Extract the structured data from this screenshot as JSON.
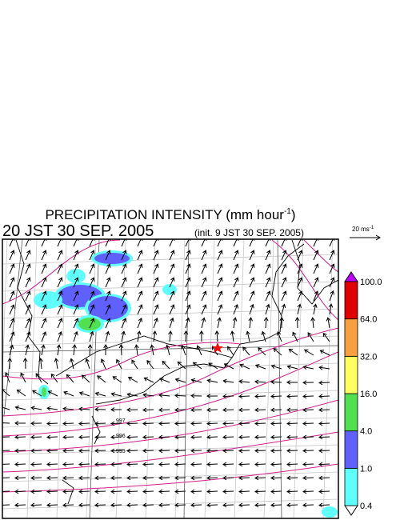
{
  "header": {
    "title": {
      "text": "PRECIPITATION INTENSITY (mm hour",
      "sup": "-1",
      "end": ")"
    },
    "valid_time": "20 JST 30 SEP. 2005",
    "init_time": "(init. 9 JST 30 SEP. 2005)"
  },
  "scale_arrow": {
    "text": "20 ms",
    "sup": "-1"
  },
  "colorbar": {
    "colors": [
      "#60ffff",
      "#6060ff",
      "#50e050",
      "#ffff60",
      "#f8a040",
      "#e00000"
    ],
    "over_color": "#c000ff",
    "under_color": "#ffffff",
    "levels": [
      {
        "value": 0.4,
        "label": "0.4"
      },
      {
        "value": 1,
        "label": "1.0"
      },
      {
        "value": 4,
        "label": "4.0"
      },
      {
        "value": 16,
        "label": "16.0"
      },
      {
        "value": 32,
        "label": "32.0"
      },
      {
        "value": 64,
        "label": "64.0"
      },
      {
        "value": 100,
        "label": "100.0"
      }
    ]
  },
  "isobar_labels": [
    "997",
    "996",
    "995"
  ]
}
